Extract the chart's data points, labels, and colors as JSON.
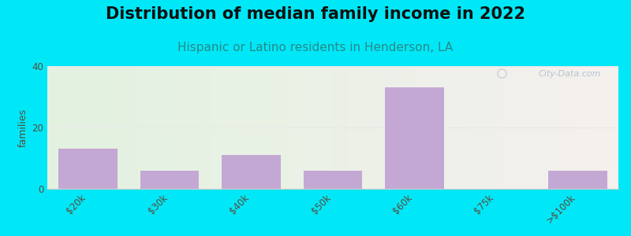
{
  "title": "Distribution of median family income in 2022",
  "subtitle": "Hispanic or Latino residents in Henderson, LA",
  "categories": [
    "$20k",
    "$30k",
    "$40k",
    "$50k",
    "$60k",
    "$75k",
    ">$100k"
  ],
  "values": [
    13,
    6,
    11,
    6,
    33,
    0,
    6
  ],
  "bar_color": "#c4a8d4",
  "bar_edgecolor": "#c4a8d4",
  "ylabel": "families",
  "ylim": [
    0,
    40
  ],
  "yticks": [
    0,
    20,
    40
  ],
  "background_outer": "#00e8f8",
  "background_plot_left": "#e2f2e0",
  "background_plot_right": "#f5f0ee",
  "title_fontsize": 15,
  "subtitle_fontsize": 11,
  "title_color": "#111111",
  "subtitle_color": "#2a8888",
  "ylabel_color": "#5a4a3a",
  "tick_color": "#5a4a3a",
  "watermark_text": "City-Data.com",
  "watermark_color": "#aabbcc",
  "grid_color": "#e8e8e8",
  "axis_line_color": "#cccccc"
}
